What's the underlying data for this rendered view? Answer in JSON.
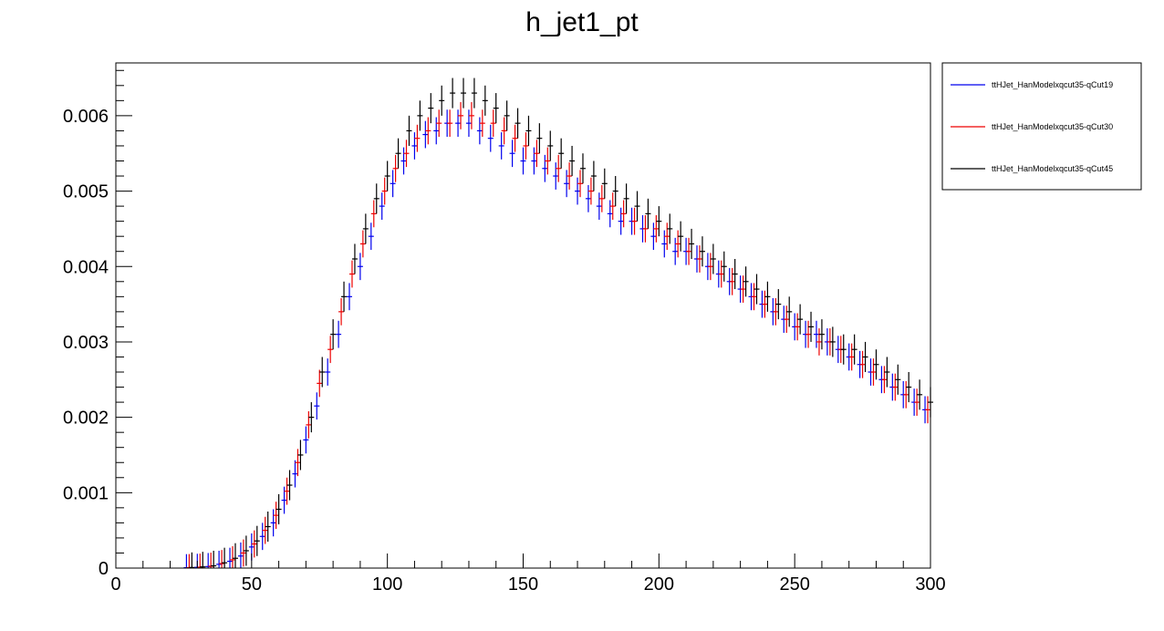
{
  "chart_data": {
    "type": "scatter",
    "title": "h_jet1_pt",
    "xlabel": "",
    "ylabel": "",
    "xlim": [
      0,
      300
    ],
    "ylim": [
      0,
      0.0067
    ],
    "x_ticks": [
      0,
      50,
      100,
      150,
      200,
      250,
      300
    ],
    "x_tick_labels": [
      "0",
      "50",
      "100",
      "150",
      "200",
      "250",
      "300"
    ],
    "y_ticks": [
      0,
      0.001,
      0.002,
      0.003,
      0.004,
      0.005,
      0.006
    ],
    "y_tick_labels": [
      "0",
      "0.001",
      "0.002",
      "0.003",
      "0.004",
      "0.005",
      "0.006"
    ],
    "grid": false,
    "legend_position": "top-right, outside plot",
    "series": [
      {
        "name": "ttHJet_HanModelxqcut35-qCut19",
        "color": "#0000ee",
        "x": [
          26,
          30,
          34,
          38,
          42,
          46,
          50,
          54,
          58,
          62,
          66,
          70,
          74,
          78,
          82,
          86,
          90,
          94,
          98,
          102,
          106,
          110,
          114,
          118,
          122,
          126,
          130,
          134,
          138,
          142,
          146,
          150,
          154,
          158,
          162,
          166,
          170,
          174,
          178,
          182,
          186,
          190,
          194,
          198,
          202,
          206,
          210,
          214,
          218,
          222,
          226,
          230,
          234,
          238,
          242,
          246,
          250,
          254,
          258,
          262,
          266,
          270,
          274,
          278,
          282,
          286,
          290,
          294,
          298
        ],
        "y": [
          5e-06,
          1e-05,
          2e-05,
          5e-05,
          9e-05,
          0.00016,
          0.00028,
          0.00042,
          0.0006,
          0.0009,
          0.00125,
          0.0017,
          0.00215,
          0.0026,
          0.0031,
          0.0036,
          0.004,
          0.0044,
          0.0048,
          0.0051,
          0.0054,
          0.0056,
          0.00575,
          0.0058,
          0.0059,
          0.0059,
          0.0059,
          0.0058,
          0.0057,
          0.0056,
          0.0055,
          0.0054,
          0.0054,
          0.0053,
          0.0052,
          0.0051,
          0.005,
          0.0049,
          0.0048,
          0.0047,
          0.0046,
          0.0046,
          0.0045,
          0.0044,
          0.0043,
          0.0042,
          0.0042,
          0.0041,
          0.004,
          0.0039,
          0.0038,
          0.0037,
          0.0036,
          0.0035,
          0.0034,
          0.0033,
          0.0032,
          0.0031,
          0.0031,
          0.003,
          0.0029,
          0.0028,
          0.0027,
          0.0026,
          0.0025,
          0.0024,
          0.0023,
          0.0022,
          0.0021
        ],
        "yerr": 0.00018
      },
      {
        "name": "ttHJet_HanModelxqcut35-qCut30",
        "color": "#ee0000",
        "x": [
          27,
          31,
          35,
          39,
          43,
          47,
          51,
          55,
          59,
          63,
          67,
          71,
          75,
          79,
          83,
          87,
          91,
          95,
          99,
          103,
          107,
          111,
          115,
          119,
          123,
          127,
          131,
          135,
          139,
          143,
          147,
          151,
          155,
          159,
          163,
          167,
          171,
          175,
          179,
          183,
          187,
          191,
          195,
          199,
          203,
          207,
          211,
          215,
          219,
          223,
          227,
          231,
          235,
          239,
          243,
          247,
          251,
          255,
          259,
          263,
          267,
          271,
          275,
          279,
          283,
          287,
          291,
          295,
          299
        ],
        "y": [
          6e-06,
          1.2e-05,
          2.5e-05,
          6e-05,
          0.00011,
          0.0002,
          0.00032,
          0.0005,
          0.0007,
          0.00102,
          0.0014,
          0.0019,
          0.00245,
          0.0029,
          0.0034,
          0.0039,
          0.0043,
          0.0047,
          0.005,
          0.0053,
          0.0055,
          0.0057,
          0.0058,
          0.0059,
          0.0059,
          0.006,
          0.006,
          0.0059,
          0.0059,
          0.0058,
          0.0057,
          0.0056,
          0.0055,
          0.0054,
          0.0053,
          0.0052,
          0.0051,
          0.005,
          0.0049,
          0.0048,
          0.0047,
          0.0046,
          0.0045,
          0.0045,
          0.0044,
          0.0043,
          0.0042,
          0.0041,
          0.004,
          0.0039,
          0.0038,
          0.0037,
          0.0036,
          0.0035,
          0.0034,
          0.0033,
          0.0032,
          0.0031,
          0.003,
          0.003,
          0.0029,
          0.0028,
          0.0027,
          0.0026,
          0.0025,
          0.0024,
          0.0023,
          0.0022,
          0.0021
        ],
        "yerr": 0.00018
      },
      {
        "name": "ttHJet_HanModelxqcut35-qCut45",
        "color": "#000000",
        "x": [
          28,
          32,
          36,
          40,
          44,
          48,
          52,
          56,
          60,
          64,
          68,
          72,
          76,
          80,
          84,
          88,
          92,
          96,
          100,
          104,
          108,
          112,
          116,
          120,
          124,
          128,
          132,
          136,
          140,
          144,
          148,
          152,
          156,
          160,
          164,
          168,
          172,
          176,
          180,
          184,
          188,
          192,
          196,
          200,
          204,
          208,
          212,
          216,
          220,
          224,
          228,
          232,
          236,
          240,
          244,
          248,
          252,
          256,
          260,
          264,
          268,
          272,
          276,
          280,
          284,
          288,
          292,
          296,
          300
        ],
        "y": [
          8e-06,
          1.6e-05,
          3e-05,
          7e-05,
          0.00013,
          0.00023,
          0.00036,
          0.00055,
          0.00078,
          0.0011,
          0.0015,
          0.002,
          0.0026,
          0.0031,
          0.0036,
          0.0041,
          0.0045,
          0.0049,
          0.0052,
          0.0055,
          0.0058,
          0.006,
          0.0061,
          0.0062,
          0.0063,
          0.0063,
          0.0063,
          0.0062,
          0.0061,
          0.006,
          0.0059,
          0.0058,
          0.0057,
          0.0056,
          0.0055,
          0.0054,
          0.0053,
          0.0052,
          0.0051,
          0.005,
          0.0049,
          0.0048,
          0.0047,
          0.0046,
          0.0045,
          0.0044,
          0.0043,
          0.0042,
          0.0041,
          0.004,
          0.0039,
          0.0038,
          0.0037,
          0.0036,
          0.0035,
          0.0034,
          0.0033,
          0.0032,
          0.0031,
          0.003,
          0.0029,
          0.0029,
          0.0028,
          0.0027,
          0.0026,
          0.0025,
          0.0024,
          0.0023,
          0.0022
        ],
        "yerr": 0.0002
      }
    ]
  }
}
